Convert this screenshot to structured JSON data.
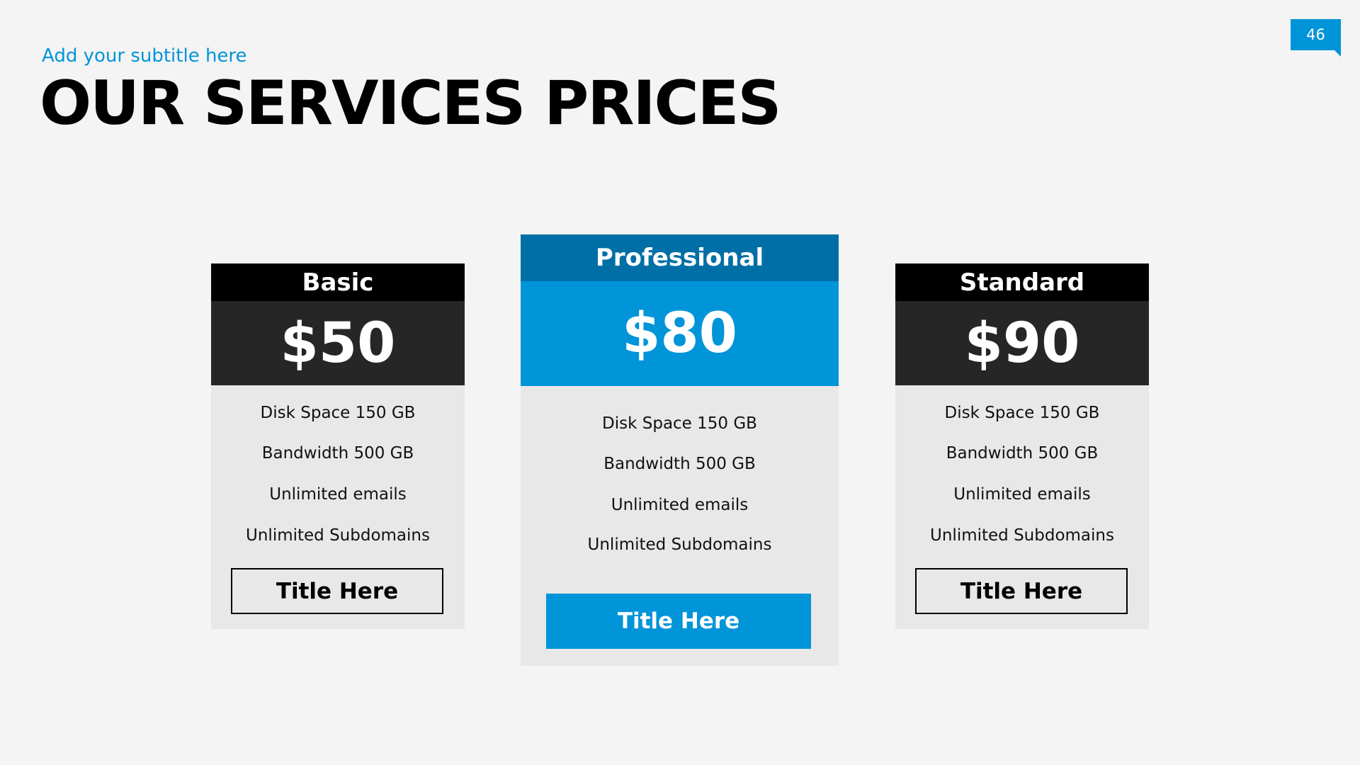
{
  "slide": {
    "number": "46",
    "subtitle": "Add your subtitle here",
    "title": "OUR SERVICES PRICES"
  },
  "colors": {
    "accent": "#0094d9",
    "accent_dark": "#006fa6",
    "header_dark": "#000000",
    "price_dark": "#262626",
    "card_bg": "#e8e8e8"
  },
  "plans": [
    {
      "name": "Basic",
      "price": "$50",
      "features": [
        "Disk Space 150 GB",
        "Bandwidth 500  GB",
        "Unlimited emails",
        "Unlimited Subdomains"
      ],
      "button": "Title Here"
    },
    {
      "name": "Professional",
      "price": "$80",
      "features": [
        "Disk Space 150 GB",
        "Bandwidth 500  GB",
        "Unlimited emails",
        "Unlimited Subdomains"
      ],
      "button": "Title Here",
      "highlighted": true
    },
    {
      "name": "Standard",
      "price": "$90",
      "features": [
        "Disk Space 150 GB",
        "Bandwidth 500  GB",
        "Unlimited emails",
        "Unlimited Subdomains"
      ],
      "button": "Title Here"
    }
  ]
}
